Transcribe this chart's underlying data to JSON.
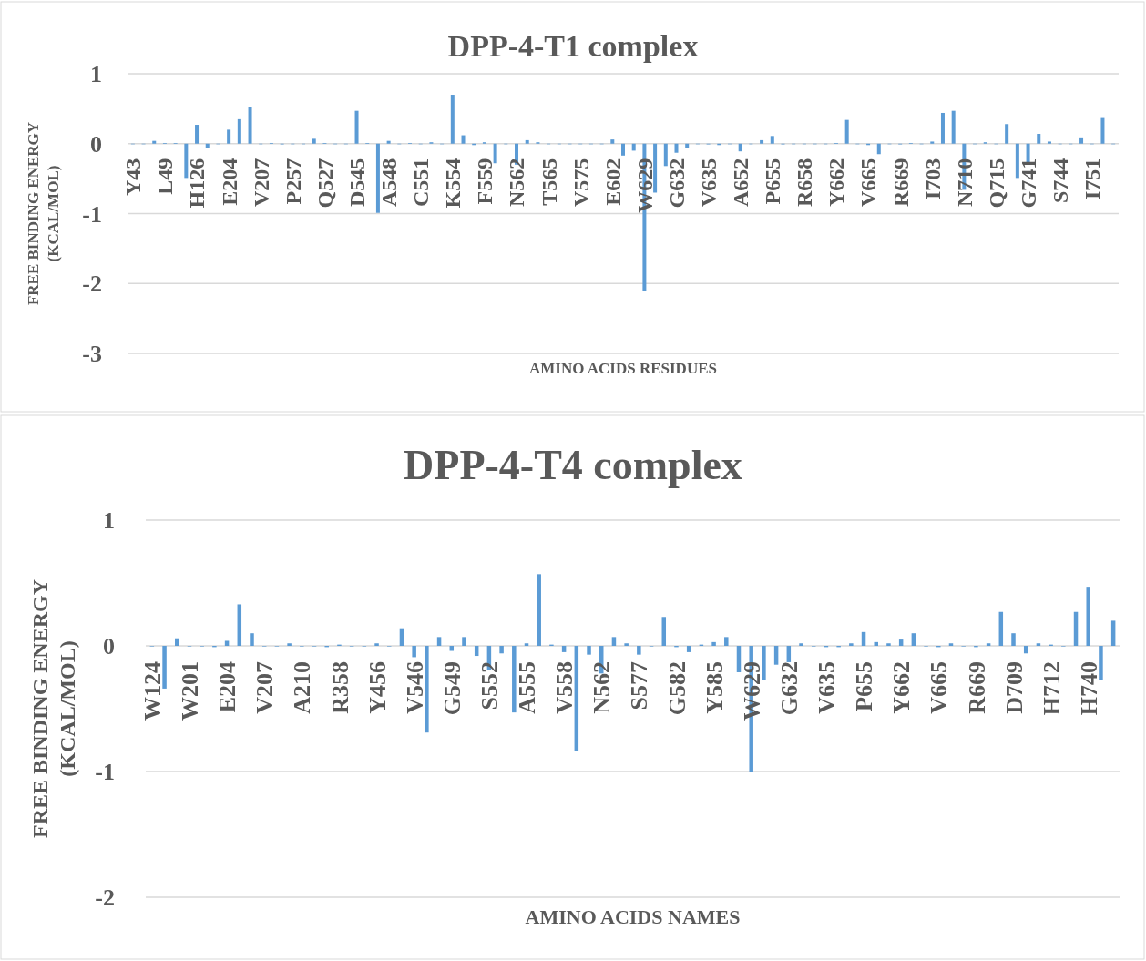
{
  "chart_data": [
    {
      "type": "bar",
      "title": "DPP-4-T1 complex",
      "xlabel": "AMINO ACIDS RESIDUES",
      "ylabel": "FREE BINDING ENERGY\n(KCAL/MOL)",
      "ylim": [
        -3,
        1
      ],
      "yticks": [
        -3,
        -2,
        -1,
        0,
        1
      ],
      "grid": "y",
      "categories": [
        "Y43",
        null,
        null,
        "L49",
        null,
        null,
        "H126",
        null,
        null,
        "E204",
        null,
        null,
        "V207",
        null,
        null,
        "P257",
        null,
        null,
        "Q527",
        null,
        null,
        "D545",
        null,
        null,
        "A548",
        null,
        null,
        "C551",
        null,
        null,
        "K554",
        null,
        null,
        "F559",
        null,
        null,
        "N562",
        null,
        null,
        "T565",
        null,
        null,
        "V575",
        null,
        null,
        "E602",
        null,
        null,
        "W629",
        null,
        null,
        "G632",
        null,
        null,
        "V635",
        null,
        null,
        "A652",
        null,
        null,
        "P655",
        null,
        null,
        "R658",
        null,
        null,
        "Y662",
        null,
        null,
        "V665",
        null,
        null,
        "R669",
        null,
        null,
        "I703",
        null,
        null,
        "N710",
        null,
        null,
        "Q715",
        null,
        null,
        "G741",
        null,
        null,
        "S744",
        null,
        null,
        "I751",
        null,
        null
      ],
      "series": [
        {
          "color": "#5b9bd5",
          "values": [
            0,
            0,
            0.04,
            0.01,
            0.01,
            -0.49,
            0.27,
            -0.06,
            0,
            0.2,
            0.35,
            0.53,
            0,
            0.01,
            -0.01,
            0,
            0,
            0.07,
            0.01,
            0,
            0,
            0.47,
            0.01,
            -0.99,
            0.04,
            0,
            0.01,
            0,
            0.02,
            0,
            0.7,
            0.12,
            -0.02,
            0.02,
            -0.28,
            0,
            -0.3,
            0.05,
            0.02,
            0,
            0,
            0,
            0,
            0,
            0,
            0.06,
            -0.17,
            -0.1,
            -2.11,
            -0.7,
            -0.32,
            -0.13,
            -0.06,
            0,
            -0.01,
            -0.02,
            0,
            -0.11,
            0,
            0.05,
            0.11,
            -0.01,
            0,
            0,
            0,
            0,
            0.01,
            0.34,
            0,
            -0.02,
            -0.15,
            0,
            -0.01,
            0.01,
            0,
            0.03,
            0.44,
            0.47,
            -0.66,
            0,
            0.02,
            0,
            0.28,
            -0.49,
            -0.3,
            0.14,
            0.03,
            0,
            0,
            0.09,
            0,
            0.38,
            0
          ]
        }
      ]
    },
    {
      "type": "bar",
      "title": "DPP-4-T4 complex",
      "xlabel": "AMINO ACIDS NAMES",
      "ylabel": "FREE BINDING ENERGY\n(KCAL/MOL)",
      "ylim": [
        -2,
        1
      ],
      "yticks": [
        -2,
        -1,
        0,
        1
      ],
      "grid": "y",
      "categories": [
        "W124",
        null,
        null,
        "W201",
        null,
        null,
        "E204",
        null,
        null,
        "V207",
        null,
        null,
        "A210",
        null,
        null,
        "R358",
        null,
        null,
        "Y456",
        null,
        null,
        "V546",
        null,
        null,
        "G549",
        null,
        null,
        "S552",
        null,
        null,
        "A555",
        null,
        null,
        "V558",
        null,
        null,
        "N562",
        null,
        null,
        "S577",
        null,
        null,
        "G582",
        null,
        null,
        "Y585",
        null,
        null,
        "W629",
        null,
        null,
        "G632",
        null,
        null,
        "V635",
        null,
        null,
        "P655",
        null,
        null,
        "Y662",
        null,
        null,
        "V665",
        null,
        null,
        "R669",
        null,
        null,
        "D709",
        null,
        null,
        "H712",
        null,
        null,
        "H740",
        null,
        null
      ],
      "series": [
        {
          "color": "#5b9bd5",
          "values": [
            0,
            -0.34,
            0.06,
            0,
            0,
            -0.01,
            0.04,
            0.33,
            0.1,
            0,
            0,
            0.02,
            0,
            0,
            -0.01,
            0.01,
            0,
            0,
            0.02,
            0,
            0.14,
            -0.09,
            -0.69,
            0.07,
            -0.04,
            0.07,
            -0.08,
            -0.19,
            -0.06,
            -0.53,
            0.02,
            0.57,
            0.01,
            -0.05,
            -0.84,
            -0.07,
            -0.22,
            0.07,
            0.02,
            -0.07,
            0,
            0.23,
            -0.01,
            -0.05,
            0.01,
            0.03,
            0.07,
            -0.21,
            -1,
            -0.27,
            -0.15,
            -0.13,
            0.02,
            0,
            -0.01,
            -0.01,
            0.02,
            0.11,
            0.03,
            0.02,
            0.05,
            0.1,
            0,
            -0.01,
            0.02,
            0,
            -0.01,
            0.02,
            0.27,
            0.1,
            -0.06,
            0.02,
            0.01,
            0,
            0.27,
            0.47,
            -0.27,
            0.2
          ]
        }
      ]
    }
  ]
}
